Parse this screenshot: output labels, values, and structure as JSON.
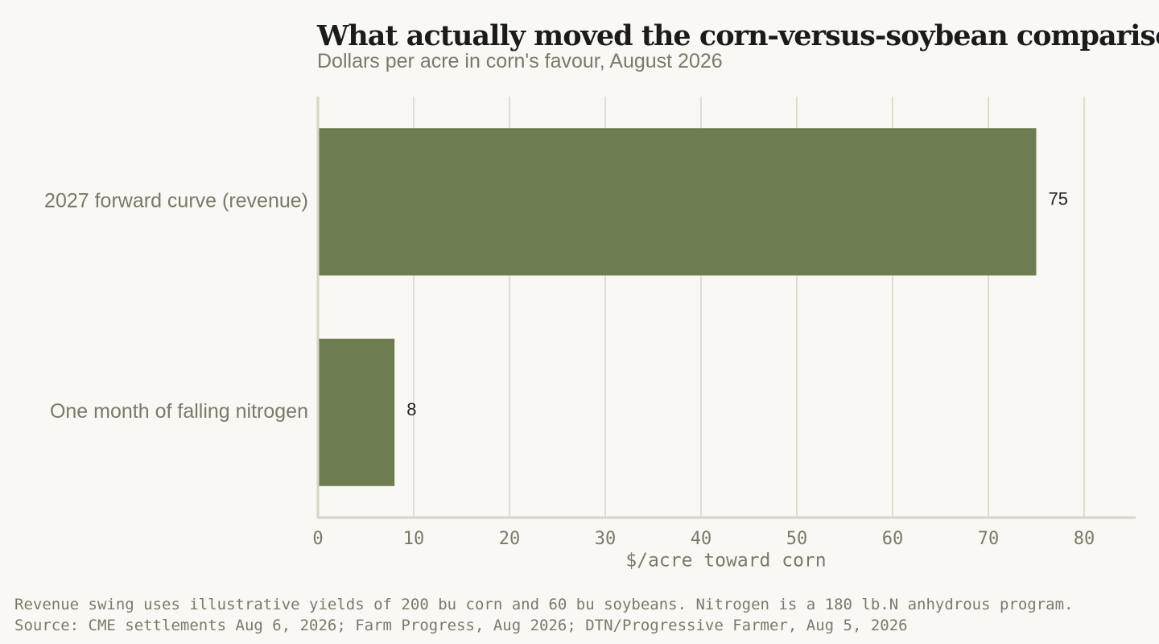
{
  "title": "What actually moved the corn-versus-soybean comparison",
  "subtitle": "Dollars per acre in corn's favour, August 2026",
  "footnote": "Revenue swing uses illustrative yields of 200 bu corn and 60 bu soybeans. Nitrogen is a 180 lb.N anhydrous program.   Source: CME settlements Aug 6, 2026; Farm Progress, Aug 2026; DTN/Progressive Farmer, Aug 5, 2026",
  "colors": {
    "bar": "#6e7d51",
    "grid": "#e0ddd0",
    "axis": "#d8d4c6"
  },
  "chart_data": {
    "type": "bar",
    "orientation": "horizontal",
    "categories": [
      "2027 forward curve (revenue)",
      "One month of falling nitrogen"
    ],
    "values": [
      75,
      8
    ],
    "value_labels": [
      "75",
      "8"
    ],
    "xlabel": "$/acre toward corn",
    "ylabel": "",
    "xlim": [
      0,
      85
    ],
    "xticks": [
      0,
      10,
      20,
      30,
      40,
      50,
      60,
      70,
      80
    ],
    "grid": true
  }
}
